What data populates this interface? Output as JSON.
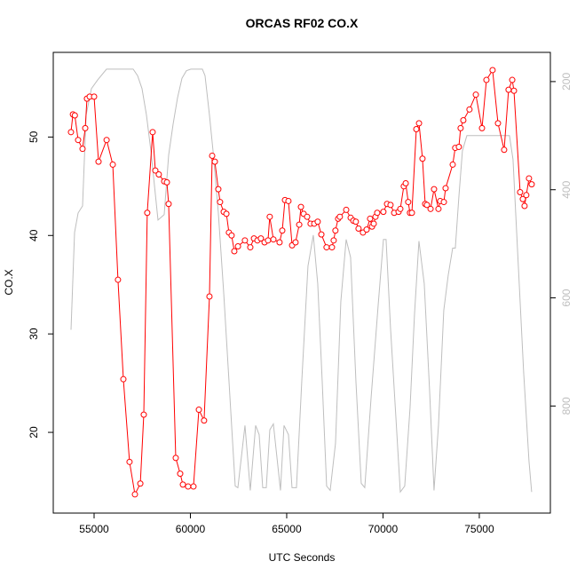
{
  "chart_data": {
    "type": "line",
    "title": "ORCAS RF02 CO.X",
    "xlabel": "UTC Seconds",
    "ylabel": "CO.X",
    "xlim": [
      52880,
      78690
    ],
    "xticks": [
      55000,
      60000,
      65000,
      70000,
      75000
    ],
    "ylim": [
      11.8,
      58.6
    ],
    "yticks": [
      20,
      30,
      40,
      50
    ],
    "y2lim": [
      998,
      146
    ],
    "y2ticks": [
      200,
      400,
      600,
      800
    ],
    "series": [
      {
        "color": "#ff0000",
        "markers": true,
        "x": [
          53800,
          53900,
          54000,
          54170,
          54400,
          54540,
          54630,
          54770,
          55000,
          55230,
          55650,
          55970,
          56240,
          56520,
          56840,
          57120,
          57400,
          57580,
          57760,
          58040,
          58180,
          58360,
          58640,
          58780,
          58870,
          59240,
          59470,
          59610,
          59880,
          60160,
          60440,
          60710,
          60990,
          61130,
          61270,
          61450,
          61540,
          61730,
          61870,
          62000,
          62140,
          62280,
          62470,
          62830,
          63110,
          63300,
          63480,
          63660,
          63850,
          64030,
          64120,
          64310,
          64630,
          64770,
          64910,
          65090,
          65280,
          65460,
          65650,
          65740,
          65880,
          66060,
          66240,
          66430,
          66610,
          66800,
          67070,
          67350,
          67440,
          67530,
          67670,
          67760,
          68090,
          68320,
          68460,
          68590,
          68730,
          68960,
          69150,
          69330,
          69430,
          69520,
          69610,
          69700,
          70020,
          70210,
          70390,
          70580,
          70810,
          70900,
          71080,
          71180,
          71310,
          71400,
          71500,
          71730,
          71870,
          72050,
          72190,
          72280,
          72470,
          72650,
          72880,
          72970,
          73160,
          73250,
          73620,
          73750,
          73940,
          74030,
          74170,
          74490,
          74820,
          75140,
          75370,
          75690,
          75970,
          76290,
          76520,
          76710,
          76800,
          77120,
          77260,
          77350,
          77440,
          77580,
          77720
        ],
        "values": [
          50.5,
          52.3,
          52.2,
          49.7,
          48.8,
          50.9,
          53.9,
          54.1,
          54.1,
          47.5,
          49.7,
          47.2,
          35.5,
          25.4,
          17.0,
          13.7,
          14.8,
          21.8,
          42.3,
          50.5,
          46.6,
          46.2,
          45.5,
          45.4,
          43.2,
          17.4,
          15.8,
          14.7,
          14.5,
          14.5,
          22.3,
          21.2,
          33.8,
          48.1,
          47.5,
          44.7,
          43.4,
          42.4,
          42.2,
          40.3,
          40.0,
          38.4,
          38.9,
          39.5,
          38.8,
          39.7,
          39.5,
          39.7,
          39.3,
          39.5,
          41.9,
          39.6,
          39.3,
          40.5,
          43.6,
          43.5,
          39.0,
          39.3,
          41.1,
          42.9,
          42.2,
          41.9,
          41.2,
          41.2,
          41.4,
          40.1,
          38.8,
          38.8,
          39.5,
          40.5,
          41.7,
          41.9,
          42.6,
          41.8,
          41.5,
          41.4,
          40.7,
          40.3,
          40.6,
          41.7,
          40.9,
          41.2,
          41.9,
          42.3,
          42.4,
          43.2,
          43.1,
          42.3,
          42.4,
          42.7,
          45.0,
          45.3,
          43.4,
          42.3,
          42.3,
          50.8,
          51.4,
          47.8,
          43.2,
          43.1,
          42.7,
          44.7,
          42.7,
          43.5,
          43.4,
          44.8,
          47.2,
          48.9,
          49.0,
          50.9,
          51.7,
          52.8,
          54.3,
          50.9,
          55.8,
          56.8,
          51.4,
          48.7,
          54.8,
          55.8,
          54.7,
          44.4,
          43.7,
          43.0,
          44.1,
          45.8,
          45.2
        ]
      },
      {
        "color": "#bebebe",
        "axis": "y2",
        "markers": false,
        "x": [
          53802,
          53986,
          54171,
          54401,
          54585,
          54862,
          55184,
          55645,
          57028,
          57258,
          57488,
          57719,
          57949,
          58318,
          58640,
          58871,
          59101,
          59332,
          59562,
          59792,
          60023,
          60622,
          60760,
          60990,
          61175,
          61451,
          61728,
          62004,
          62327,
          62465,
          62834,
          63110,
          63387,
          63571,
          63755,
          63940,
          64124,
          64308,
          64677,
          64861,
          65092,
          65276,
          65507,
          65783,
          66105,
          66382,
          66612,
          66843,
          67073,
          67258,
          67534,
          67810,
          68087,
          68317,
          68594,
          68870,
          69054,
          69377,
          69746,
          70022,
          70160,
          70391,
          70668,
          70898,
          71128,
          71405,
          71635,
          71866,
          72142,
          72419,
          72649,
          72880,
          73156,
          73387,
          73617,
          73755,
          73940,
          74124,
          74354,
          74769,
          75921,
          76566,
          76750,
          77027,
          77303,
          77580,
          77718
        ],
        "values": [
          659,
          479,
          443,
          430,
          262,
          213,
          197,
          177,
          177,
          189,
          213,
          262,
          328,
          456,
          446,
          336,
          279,
          230,
          194,
          180,
          177,
          177,
          189,
          262,
          328,
          443,
          590,
          754,
          948,
          951,
          836,
          956,
          836,
          853,
          951,
          951,
          844,
          833,
          956,
          836,
          853,
          951,
          951,
          754,
          541,
          484,
          574,
          754,
          948,
          956,
          869,
          607,
          492,
          525,
          754,
          943,
          951,
          787,
          615,
          492,
          492,
          656,
          820,
          959,
          948,
          803,
          631,
          495,
          574,
          771,
          956,
          836,
          623,
          558,
          508,
          508,
          413,
          328,
          300,
          300,
          300,
          300,
          344,
          541,
          738,
          902,
          959
        ]
      }
    ]
  }
}
